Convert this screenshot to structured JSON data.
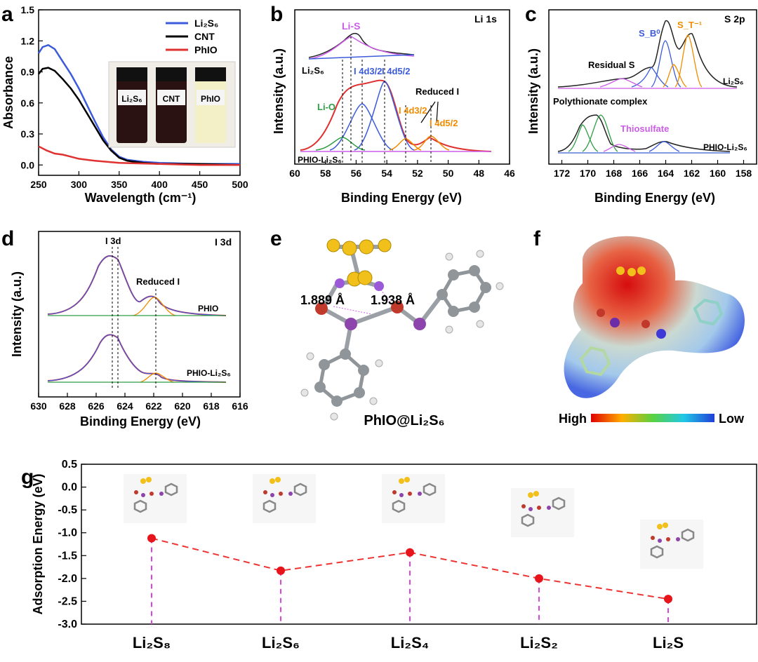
{
  "panels": {
    "a": {
      "letter": "a"
    },
    "b": {
      "letter": "b",
      "tag": "Li 1s"
    },
    "c": {
      "letter": "c",
      "tag": "S 2p"
    },
    "d": {
      "letter": "d",
      "tag": "I 3d"
    },
    "e": {
      "letter": "e"
    },
    "f": {
      "letter": "f",
      "high": "High",
      "low": "Low"
    },
    "g": {
      "letter": "g"
    }
  },
  "colors": {
    "blue": "#3b5bdb",
    "black": "#000000",
    "red": "#e03131",
    "orange": "#f08c00",
    "green": "#2f9e44",
    "magenta": "#cc5de8",
    "dashed": "#ee3333"
  },
  "chart_data": [
    {
      "id": "a",
      "type": "line",
      "xlabel": "Wavelength (cm⁻¹)",
      "ylabel": "Absorbance",
      "xlim": [
        250,
        500
      ],
      "ylim": [
        -0.1,
        1.5
      ],
      "xticks": [
        "250",
        "300",
        "350",
        "400",
        "450",
        "500"
      ],
      "yticks": [
        "0.0",
        "0.3",
        "0.6",
        "0.9",
        "1.2",
        "1.5"
      ],
      "series": [
        {
          "name": "Li₂S₆",
          "color": "#3b5bdb",
          "x": [
            250,
            255,
            262,
            270,
            280,
            290,
            300,
            310,
            320,
            330,
            340,
            350,
            360,
            380,
            400,
            450,
            500
          ],
          "y": [
            1.08,
            1.14,
            1.16,
            1.12,
            1.0,
            0.88,
            0.74,
            0.58,
            0.42,
            0.27,
            0.15,
            0.08,
            0.05,
            0.03,
            0.02,
            0.01,
            0.01
          ]
        },
        {
          "name": "CNT",
          "color": "#000000",
          "x": [
            250,
            255,
            262,
            270,
            280,
            290,
            300,
            310,
            320,
            330,
            340,
            350,
            360,
            380,
            400,
            450,
            500
          ],
          "y": [
            0.88,
            0.93,
            0.94,
            0.91,
            0.83,
            0.74,
            0.63,
            0.5,
            0.37,
            0.24,
            0.14,
            0.07,
            0.04,
            0.02,
            0.01,
            0.01,
            0.0
          ]
        },
        {
          "name": "PhIO",
          "color": "#e03131",
          "x": [
            250,
            260,
            270,
            280,
            290,
            300,
            320,
            350,
            400,
            450,
            500
          ],
          "y": [
            0.18,
            0.14,
            0.11,
            0.1,
            0.08,
            0.06,
            0.04,
            0.02,
            0.01,
            0.0,
            0.0
          ]
        }
      ],
      "inset_labels": [
        "Li₂S₆",
        "CNT",
        "PhIO"
      ]
    },
    {
      "id": "b",
      "type": "line",
      "xlabel": "Binding Energy (eV)",
      "ylabel": "Intensity (a.u.)",
      "xlim": [
        60,
        46
      ],
      "xticks": [
        "60",
        "58",
        "56",
        "54",
        "52",
        "50",
        "48",
        "46"
      ],
      "annotations": [
        "Li-S",
        "Li₂S₆",
        "Li-O",
        "I 4d3/2",
        "I 4d5/2",
        "Reduced I",
        "I 4d3/2",
        "I 4d5/2",
        "PHIO-Li₂S₆"
      ]
    },
    {
      "id": "c",
      "type": "line",
      "xlabel": "Binding Energy (eV)",
      "ylabel": "Intensity (a.u.)",
      "xlim": [
        173,
        157
      ],
      "xticks": [
        "172",
        "170",
        "168",
        "166",
        "164",
        "162",
        "160",
        "158"
      ],
      "annotations": [
        "S_B⁰",
        "S_T⁻¹",
        "Residual S",
        "Li₂S₆",
        "Polythionate complex",
        "Thiosulfate",
        "PHIO-Li₂S₆"
      ]
    },
    {
      "id": "d",
      "type": "line",
      "xlabel": "Binding Energy (eV)",
      "ylabel": "Intensity (a.u.)",
      "xlim": [
        630,
        616
      ],
      "xticks": [
        "630",
        "628",
        "626",
        "624",
        "622",
        "620",
        "618",
        "616"
      ],
      "annotations": [
        "I 3d",
        "Reduced I",
        "PHIO",
        "PHIO-Li₂S₆"
      ]
    },
    {
      "id": "g",
      "type": "line",
      "ylabel": "Adsorption Energy (eV)",
      "ylim": [
        -3.0,
        0.5
      ],
      "yticks": [
        "0.5",
        "0.0",
        "-0.5",
        "-1.0",
        "-1.5",
        "-2.0",
        "-2.5",
        "-3.0"
      ],
      "categories": [
        "Li₂S₈",
        "Li₂S₆",
        "Li₂S₄",
        "Li₂S₂",
        "Li₂S"
      ],
      "values": [
        -1.12,
        -1.83,
        -1.43,
        -2.0,
        -2.45
      ]
    }
  ],
  "e": {
    "dist1": "1.889 Å",
    "dist2": "1.938 Å",
    "caption": "PhIO@Li₂S₆"
  }
}
